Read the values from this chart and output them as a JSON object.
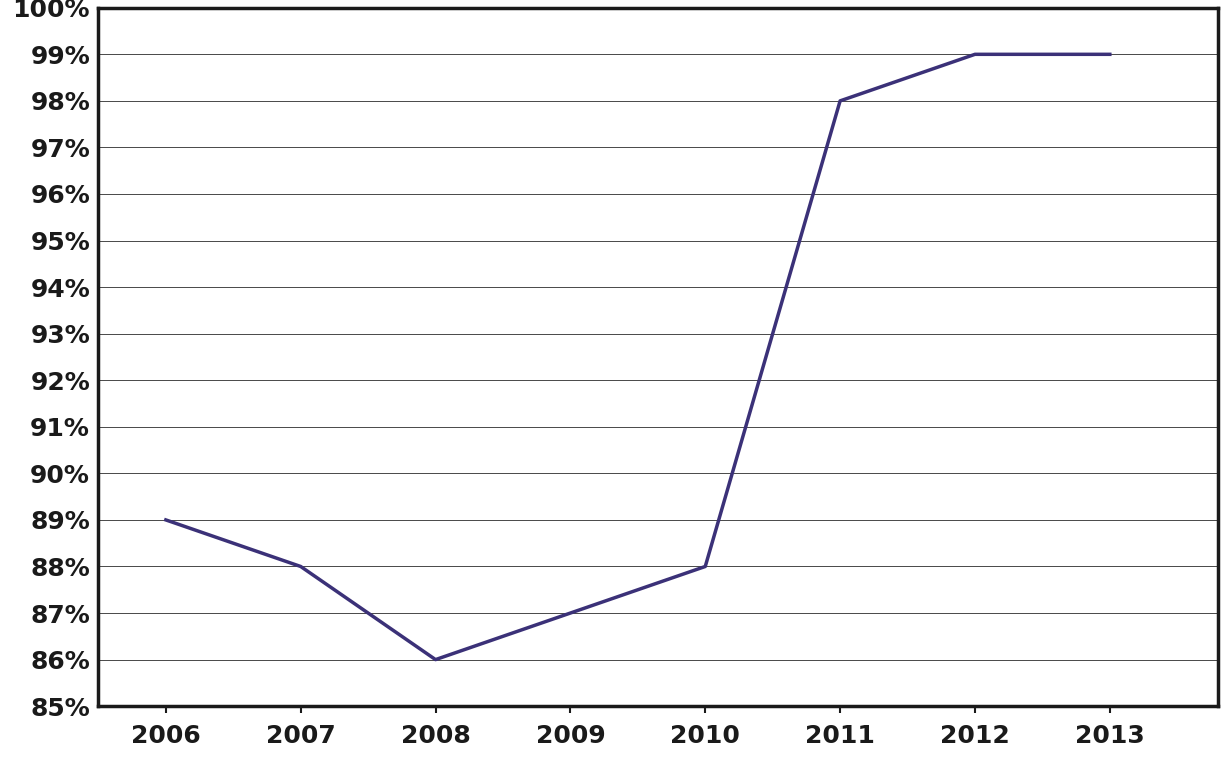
{
  "x": [
    2006,
    2007,
    2008,
    2009,
    2010,
    2011,
    2012,
    2013
  ],
  "y": [
    0.89,
    0.88,
    0.86,
    0.87,
    0.88,
    0.98,
    0.99,
    0.99
  ],
  "line_color": "#3B3178",
  "line_width": 2.5,
  "ylim": [
    0.85,
    1.0
  ],
  "ytick_min": 0.85,
  "ytick_max": 1.0,
  "ytick_step": 0.01,
  "xlim_min": 2005.5,
  "xlim_max": 2013.8,
  "xticks": [
    2006,
    2007,
    2008,
    2009,
    2010,
    2011,
    2012,
    2013
  ],
  "background_color": "#ffffff",
  "grid_color": "#000000",
  "grid_linewidth": 0.5,
  "spine_color": "#1a1a1a",
  "spine_linewidth": 2.5,
  "tick_label_fontsize": 18,
  "tick_label_fontweight": "bold",
  "tick_label_color": "#1a1a1a"
}
